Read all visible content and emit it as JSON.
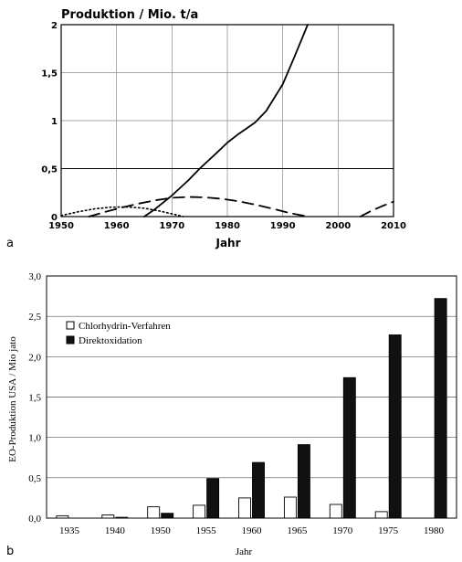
{
  "chart_data": [
    {
      "type": "line",
      "panel_label": "a",
      "title": "Produktion / Mio. t/a",
      "xlabel": "Jahr",
      "ylabel": "",
      "xlim": [
        1950,
        2010
      ],
      "ylim": [
        0,
        2
      ],
      "x_ticks": [
        1950,
        1960,
        1970,
        1980,
        1990,
        2000,
        2010
      ],
      "y_ticks": [
        0,
        0.5,
        1,
        1.5,
        2
      ],
      "y_tick_labels": [
        "0",
        "0,5",
        "1",
        "1,5",
        "2"
      ],
      "grid": true,
      "series": [
        {
          "style": "solid",
          "color": "#000000",
          "x": [
            1965,
            1967,
            1970,
            1973,
            1975,
            1978,
            1980,
            1982,
            1985,
            1987,
            1990,
            1992,
            1994.5
          ],
          "y": [
            0,
            0.08,
            0.22,
            0.38,
            0.5,
            0.66,
            0.77,
            0.86,
            0.98,
            1.1,
            1.38,
            1.65,
            2.0
          ]
        },
        {
          "style": "dashed",
          "color": "#000000",
          "x": [
            1955,
            1958,
            1961,
            1964,
            1967,
            1970,
            1973,
            1976,
            1979,
            1982,
            1985,
            1988,
            1991,
            1994.5
          ],
          "y": [
            0,
            0.05,
            0.095,
            0.135,
            0.17,
            0.195,
            0.205,
            0.2,
            0.185,
            0.16,
            0.125,
            0.085,
            0.04,
            0
          ]
        },
        {
          "style": "dashed",
          "color": "#000000",
          "x": [
            2004,
            2006,
            2008,
            2010
          ],
          "y": [
            0,
            0.06,
            0.11,
            0.155
          ]
        },
        {
          "style": "dotted",
          "color": "#000000",
          "x": [
            1950,
            1953,
            1956,
            1959,
            1962,
            1965,
            1968,
            1971,
            1972
          ],
          "y": [
            0.01,
            0.05,
            0.08,
            0.098,
            0.1,
            0.088,
            0.055,
            0.015,
            0
          ]
        }
      ]
    },
    {
      "type": "bar",
      "panel_label": "b",
      "title": "",
      "xlabel": "Jahr",
      "ylabel": "EO-Produktion USA / Mio jato",
      "ylim": [
        0,
        3
      ],
      "y_ticks": [
        0,
        0.5,
        1,
        1.5,
        2,
        2.5,
        3
      ],
      "y_tick_labels": [
        "0,0",
        "0,5",
        "1,0",
        "1,5",
        "2,0",
        "2,5",
        "3,0"
      ],
      "grid": true,
      "legend_position": "upper-left",
      "categories": [
        "1935",
        "1940",
        "1950",
        "1955",
        "1960",
        "1965",
        "1970",
        "1975",
        "1980"
      ],
      "series": [
        {
          "name": "Chlorhydrin-Verfahren",
          "fill": "#ffffff",
          "values": [
            0.03,
            0.04,
            0.14,
            0.16,
            0.25,
            0.26,
            0.17,
            0.08,
            0
          ]
        },
        {
          "name": "Direktoxidation",
          "fill": "#111111",
          "values": [
            0,
            0.01,
            0.06,
            0.49,
            0.69,
            0.91,
            1.74,
            2.27,
            2.72
          ]
        }
      ]
    }
  ]
}
